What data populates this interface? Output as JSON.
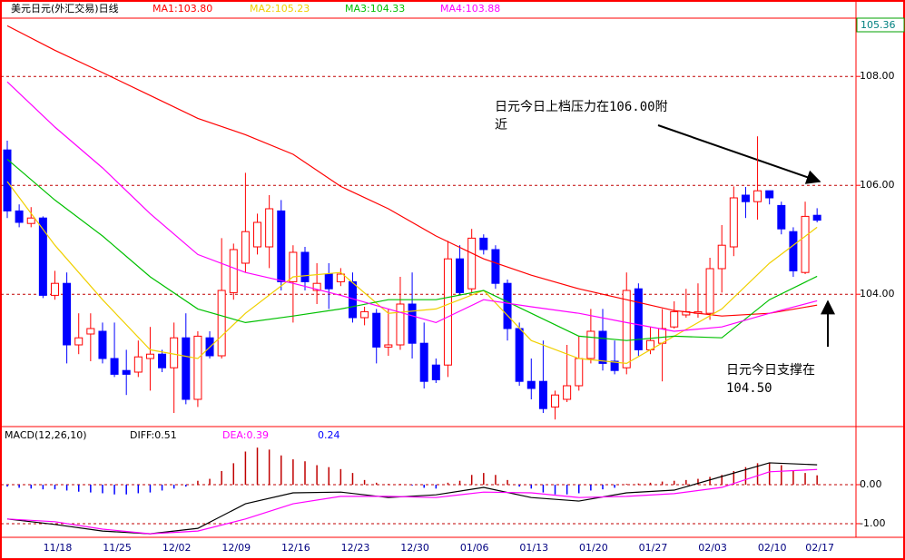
{
  "chart_data": [
    {
      "type": "candlestick",
      "title": "美元日元(外汇交易)日线",
      "price_label": "105.36",
      "categories": [
        null,
        null,
        null,
        null,
        "11/18",
        null,
        null,
        null,
        null,
        "11/25",
        null,
        null,
        null,
        null,
        "12/02",
        null,
        null,
        null,
        null,
        "12/09",
        null,
        null,
        null,
        null,
        "12/16",
        null,
        null,
        null,
        null,
        "12/23",
        null,
        null,
        null,
        null,
        "12/30",
        null,
        null,
        null,
        null,
        "01/06",
        null,
        null,
        null,
        null,
        "01/13",
        null,
        null,
        null,
        null,
        "01/20",
        null,
        null,
        null,
        null,
        "01/27",
        null,
        null,
        null,
        null,
        "02/03",
        null,
        null,
        null,
        null,
        "02/10",
        null,
        null,
        null,
        "02/17"
      ],
      "open": [
        106.65,
        105.53,
        105.3,
        105.4,
        103.98,
        104.2,
        103.07,
        103.27,
        103.32,
        102.82,
        102.6,
        102.57,
        102.82,
        102.9,
        102.65,
        103.2,
        102.07,
        103.2,
        102.87,
        104.03,
        104.57,
        104.87,
        104.87,
        105.53,
        104.23,
        104.77,
        104.07,
        104.37,
        104.23,
        104.23,
        103.57,
        103.65,
        103.03,
        103.07,
        103.82,
        103.1,
        102.7,
        102.7,
        104.65,
        104.1,
        105.03,
        104.82,
        104.2,
        103.37,
        102.4,
        102.4,
        101.93,
        102.07,
        102.32,
        102.82,
        103.32,
        102.77,
        102.65,
        104.1,
        102.98,
        103.1,
        103.4,
        103.62,
        103.65,
        103.65,
        104.47,
        104.87,
        105.82,
        105.7,
        105.9,
        105.63,
        105.15,
        104.4,
        105.45
      ],
      "high": [
        106.82,
        105.65,
        105.6,
        105.43,
        104.43,
        104.4,
        103.65,
        103.65,
        103.48,
        103.48,
        102.98,
        103.15,
        103.4,
        102.98,
        103.48,
        103.65,
        103.32,
        103.32,
        105.03,
        104.93,
        106.23,
        105.48,
        105.82,
        105.73,
        104.9,
        104.87,
        104.57,
        104.57,
        104.48,
        104.4,
        103.77,
        103.73,
        103.73,
        104.32,
        104.4,
        103.48,
        102.82,
        104.98,
        104.9,
        105.2,
        105.1,
        104.9,
        104.27,
        103.48,
        102.82,
        103.15,
        102.23,
        103.07,
        103.23,
        103.73,
        103.73,
        103.15,
        104.4,
        104.2,
        103.4,
        103.73,
        103.87,
        104.1,
        104.2,
        104.67,
        105.27,
        105.98,
        105.97,
        106.9,
        105.9,
        105.7,
        105.23,
        105.7,
        105.58
      ],
      "low": [
        105.4,
        105.23,
        105.23,
        103.93,
        103.9,
        102.73,
        102.9,
        102.77,
        102.73,
        102.48,
        102.15,
        102.48,
        102.23,
        102.57,
        101.82,
        101.98,
        101.93,
        102.82,
        102.82,
        103.9,
        104.4,
        104.73,
        104.48,
        104.07,
        103.48,
        104.07,
        103.82,
        103.73,
        104.15,
        103.48,
        103.43,
        102.73,
        102.87,
        102.98,
        102.82,
        102.27,
        102.37,
        102.48,
        103.98,
        104.03,
        104.73,
        104.1,
        103.15,
        102.32,
        102.07,
        101.82,
        101.7,
        102.02,
        102.23,
        102.73,
        102.6,
        102.53,
        102.53,
        102.87,
        102.9,
        102.4,
        103.37,
        103.57,
        103.57,
        103.53,
        104.03,
        104.7,
        105.4,
        105.37,
        105.65,
        105.1,
        104.32,
        104.37,
        105.32
      ],
      "close": [
        105.53,
        105.32,
        105.4,
        103.98,
        104.2,
        103.07,
        103.2,
        103.37,
        102.82,
        102.53,
        102.53,
        102.85,
        102.9,
        102.65,
        103.2,
        102.07,
        103.23,
        102.87,
        104.07,
        104.82,
        105.15,
        105.32,
        105.57,
        104.23,
        104.77,
        104.23,
        104.2,
        104.1,
        104.37,
        103.57,
        103.68,
        103.03,
        103.07,
        103.82,
        103.1,
        102.4,
        102.43,
        104.65,
        104.03,
        105.03,
        104.82,
        104.2,
        103.37,
        102.4,
        102.27,
        101.9,
        102.15,
        102.32,
        102.82,
        103.32,
        102.73,
        102.6,
        104.07,
        102.98,
        103.15,
        103.37,
        103.68,
        103.68,
        103.68,
        104.47,
        104.9,
        105.77,
        105.7,
        105.9,
        105.77,
        105.2,
        104.43,
        105.43,
        105.36
      ],
      "up_color": "#ff0000",
      "down_color": "#0000ff",
      "series": [
        {
          "name": "MA1:103.80",
          "color": "#ff0000",
          "x": [
            0,
            4,
            8,
            12,
            16,
            20,
            24,
            28,
            32,
            36,
            40,
            44,
            48,
            52,
            56,
            60,
            64,
            68
          ],
          "values": [
            108.93,
            108.48,
            108.07,
            107.65,
            107.23,
            106.93,
            106.57,
            105.98,
            105.57,
            105.07,
            104.65,
            104.35,
            104.1,
            103.9,
            103.7,
            103.6,
            103.65,
            103.8
          ]
        },
        {
          "name": "MA2:105.23",
          "color": "#f0d000",
          "x": [
            0,
            4,
            8,
            12,
            16,
            20,
            24,
            28,
            32,
            36,
            40,
            44,
            48,
            52,
            56,
            60,
            64,
            68
          ],
          "values": [
            106.07,
            104.9,
            103.9,
            102.98,
            102.82,
            103.65,
            104.32,
            104.4,
            103.65,
            103.73,
            104.07,
            103.15,
            102.82,
            102.73,
            103.23,
            103.73,
            104.57,
            105.23
          ]
        },
        {
          "name": "MA3:104.33",
          "color": "#00c000",
          "x": [
            0,
            4,
            8,
            12,
            16,
            20,
            24,
            28,
            32,
            36,
            40,
            44,
            48,
            52,
            56,
            60,
            64,
            68
          ],
          "values": [
            106.48,
            105.73,
            105.07,
            104.32,
            103.73,
            103.48,
            103.6,
            103.73,
            103.9,
            103.9,
            104.07,
            103.65,
            103.23,
            103.15,
            103.23,
            103.2,
            103.9,
            104.33
          ]
        },
        {
          "name": "MA4:103.88",
          "color": "#ff00ff",
          "x": [
            0,
            4,
            8,
            12,
            16,
            20,
            24,
            28,
            32,
            36,
            40,
            44,
            48,
            52,
            56,
            60,
            64,
            68
          ],
          "values": [
            107.9,
            107.07,
            106.32,
            105.48,
            104.73,
            104.4,
            104.2,
            103.98,
            103.73,
            103.48,
            103.9,
            103.77,
            103.65,
            103.48,
            103.32,
            103.4,
            103.65,
            103.88
          ]
        }
      ],
      "ylim": [
        101.57,
        109.07
      ],
      "yticks": [
        {
          "value": 104,
          "label": "104.00"
        },
        {
          "value": 106,
          "label": "106.00"
        },
        {
          "value": 108,
          "label": "108.00"
        }
      ],
      "grid": true,
      "annotations": [
        {
          "text": "日元今日上档压力在106.00附近"
        },
        {
          "text": "日元今日支撑在104.50"
        }
      ]
    },
    {
      "type": "macd",
      "title": "MACD(12,26,10)",
      "values": [
        -0.05,
        -0.08,
        -0.1,
        -0.12,
        -0.12,
        -0.15,
        -0.18,
        -0.2,
        -0.22,
        -0.25,
        -0.25,
        -0.22,
        -0.2,
        -0.15,
        -0.1,
        -0.05,
        0.1,
        0.15,
        0.35,
        0.55,
        0.85,
        0.95,
        0.9,
        0.75,
        0.65,
        0.6,
        0.5,
        0.45,
        0.4,
        0.3,
        0.12,
        0.05,
        0.02,
        0.02,
        -0.02,
        -0.08,
        -0.1,
        0.05,
        0.1,
        0.25,
        0.3,
        0.25,
        0.12,
        -0.05,
        -0.1,
        -0.2,
        -0.25,
        -0.25,
        -0.22,
        -0.15,
        -0.12,
        -0.08,
        0.02,
        0.03,
        0.05,
        0.08,
        0.1,
        0.12,
        0.15,
        0.2,
        0.25,
        0.35,
        0.45,
        0.55,
        0.55,
        0.5,
        0.35,
        0.3,
        0.24
      ],
      "up_color": "#c00000",
      "down_color": "#0000ff",
      "label_color": "#0000ff",
      "series": [
        {
          "name": "DIFF:0.51",
          "color": "#000000",
          "x": [
            0,
            4,
            8,
            12,
            16,
            20,
            24,
            28,
            32,
            36,
            40,
            44,
            48,
            52,
            56,
            60,
            64,
            68
          ],
          "values": [
            -0.88,
            -1.02,
            -1.19,
            -1.26,
            -1.12,
            -0.49,
            -0.21,
            -0.19,
            -0.33,
            -0.26,
            -0.07,
            -0.33,
            -0.42,
            -0.21,
            -0.14,
            0.21,
            0.56,
            0.51
          ]
        },
        {
          "name": "DEA:0.39",
          "color": "#ff00ff",
          "x": [
            0,
            4,
            8,
            12,
            16,
            20,
            24,
            28,
            32,
            36,
            40,
            44,
            48,
            52,
            56,
            60,
            64,
            68
          ],
          "values": [
            -0.88,
            -0.95,
            -1.14,
            -1.26,
            -1.19,
            -0.88,
            -0.49,
            -0.3,
            -0.3,
            -0.33,
            -0.19,
            -0.21,
            -0.33,
            -0.3,
            -0.23,
            -0.07,
            0.33,
            0.39
          ]
        }
      ],
      "ylim": [
        -1.35,
        1.49
      ],
      "yticks": [
        {
          "value": -1,
          "label": "-1.00"
        },
        {
          "value": 0,
          "label": "0.00"
        }
      ],
      "grid": true
    }
  ]
}
